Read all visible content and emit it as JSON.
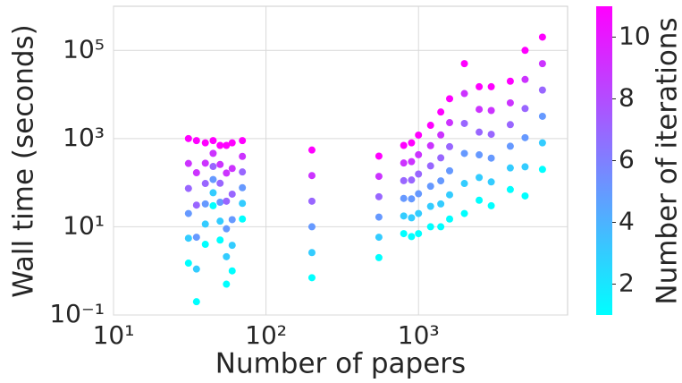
{
  "chart_data": {
    "type": "scatter",
    "xlabel": "Number of papers",
    "ylabel": "Wall time (seconds)",
    "colorbar_label": "Number of iterations",
    "colormap": "cool",
    "xscale": "log",
    "yscale": "log",
    "grid": true,
    "xlim": [
      10,
      9500
    ],
    "ylim": [
      0.1,
      1000000
    ],
    "xticks": [
      {
        "value": 10,
        "label": "10¹"
      },
      {
        "value": 100,
        "label": "10²"
      },
      {
        "value": 1000,
        "label": "10³"
      }
    ],
    "yticks": [
      {
        "value": 0.1,
        "label": "10⁻¹"
      },
      {
        "value": 10,
        "label": "10¹"
      },
      {
        "value": 1000,
        "label": "10³"
      },
      {
        "value": 100000,
        "label": "10⁵"
      }
    ],
    "clim": [
      1,
      11
    ],
    "cticks": [
      2,
      4,
      6,
      8,
      10
    ],
    "x": [
      31,
      31,
      31,
      31,
      31,
      31,
      35,
      35,
      35,
      35,
      35,
      35,
      40,
      40,
      40,
      40,
      40,
      40,
      45,
      45,
      45,
      45,
      45,
      45,
      50,
      50,
      50,
      50,
      50,
      50,
      55,
      55,
      55,
      55,
      55,
      55,
      60,
      60,
      60,
      60,
      60,
      60,
      70,
      70,
      70,
      70,
      70,
      70,
      200,
      200,
      200,
      200,
      200,
      200,
      550,
      550,
      550,
      550,
      550,
      550,
      800,
      800,
      800,
      800,
      800,
      800,
      900,
      900,
      900,
      900,
      900,
      900,
      1000,
      1000,
      1000,
      1000,
      1000,
      1000,
      1200,
      1200,
      1200,
      1200,
      1200,
      1200,
      1400,
      1400,
      1400,
      1400,
      1400,
      1400,
      1600,
      1600,
      1600,
      1600,
      1600,
      1600,
      2000,
      2000,
      2000,
      2000,
      2000,
      2000,
      2500,
      2500,
      2500,
      2500,
      2500,
      2500,
      3000,
      3000,
      3000,
      3000,
      3000,
      3000,
      4000,
      4000,
      4000,
      4000,
      4000,
      4000,
      5000,
      5000,
      5000,
      5000,
      5000,
      5000,
      6500,
      6500,
      6500,
      6500,
      6500,
      6500
    ],
    "y": [
      1.5,
      5.5,
      20,
      74,
      273,
      1000,
      0.2,
      1.1,
      5.8,
      31,
      168,
      900,
      4,
      11.5,
      33,
      96,
      277,
      800,
      30,
      59,
      118,
      233,
      462,
      900,
      5,
      13.4,
      36,
      97,
      259,
      700,
      0.5,
      2.1,
      9,
      38,
      165,
      700,
      1,
      3.8,
      14.5,
      55,
      210,
      800,
      15,
      34,
      77,
      175,
      395,
      900,
      0.7,
      2.6,
      10,
      38,
      145,
      550,
      2,
      5.8,
      16.6,
      48,
      139,
      400,
      7,
      17.6,
      44,
      111,
      279,
      700,
      6,
      16,
      43,
      115,
      300,
      800,
      7,
      20,
      56,
      157,
      430,
      1200,
      10,
      29,
      83,
      240,
      690,
      2000,
      10,
      33,
      110,
      365,
      1210,
      4000,
      15,
      53,
      186,
      655,
      2300,
      8000,
      20,
      96,
      460,
      2200,
      10500,
      50000,
      40,
      131,
      428,
      1400,
      4600,
      15000,
      30,
      104,
      360,
      1250,
      4330,
      15000,
      70,
      216,
      670,
      2070,
      6450,
      20000,
      50,
      229,
      1050,
      4800,
      21900,
      100000,
      200,
      800,
      3200,
      12600,
      50000,
      200000
    ],
    "color_values": [
      1,
      3,
      5,
      7,
      9,
      11,
      1,
      3,
      5,
      7,
      9,
      11,
      1,
      3,
      5,
      7,
      9,
      11,
      1,
      3,
      5,
      7,
      9,
      11,
      1,
      3,
      5,
      7,
      9,
      11,
      1,
      3,
      5,
      7,
      9,
      11,
      1,
      3,
      5,
      7,
      9,
      11,
      1,
      3,
      5,
      7,
      9,
      11,
      1,
      3,
      5,
      7,
      9,
      11,
      1,
      3,
      5,
      7,
      9,
      11,
      1,
      3,
      5,
      7,
      9,
      11,
      1,
      3,
      5,
      7,
      9,
      11,
      1,
      3,
      5,
      7,
      9,
      11,
      1,
      3,
      5,
      7,
      9,
      11,
      1,
      3,
      5,
      7,
      9,
      11,
      1,
      3,
      5,
      7,
      9,
      11,
      1,
      3,
      5,
      7,
      9,
      11,
      1,
      3,
      5,
      7,
      9,
      11,
      1,
      3,
      5,
      7,
      9,
      11,
      1,
      3,
      5,
      7,
      9,
      11,
      1,
      3,
      5,
      7,
      9,
      11,
      1,
      3,
      5,
      7,
      9,
      11
    ]
  }
}
